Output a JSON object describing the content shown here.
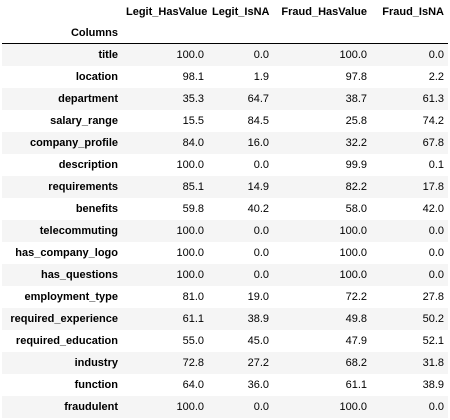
{
  "table": {
    "index_name": "Columns",
    "columns": [
      "Legit_HasValue",
      "Legit_IsNA",
      "Fraud_HasValue",
      "Fraud_IsNA"
    ],
    "rows": [
      {
        "index": "title",
        "values": [
          "100.0",
          "0.0",
          "100.0",
          "0.0"
        ]
      },
      {
        "index": "location",
        "values": [
          "98.1",
          "1.9",
          "97.8",
          "2.2"
        ]
      },
      {
        "index": "department",
        "values": [
          "35.3",
          "64.7",
          "38.7",
          "61.3"
        ]
      },
      {
        "index": "salary_range",
        "values": [
          "15.5",
          "84.5",
          "25.8",
          "74.2"
        ]
      },
      {
        "index": "company_profile",
        "values": [
          "84.0",
          "16.0",
          "32.2",
          "67.8"
        ]
      },
      {
        "index": "description",
        "values": [
          "100.0",
          "0.0",
          "99.9",
          "0.1"
        ]
      },
      {
        "index": "requirements",
        "values": [
          "85.1",
          "14.9",
          "82.2",
          "17.8"
        ]
      },
      {
        "index": "benefits",
        "values": [
          "59.8",
          "40.2",
          "58.0",
          "42.0"
        ]
      },
      {
        "index": "telecommuting",
        "values": [
          "100.0",
          "0.0",
          "100.0",
          "0.0"
        ]
      },
      {
        "index": "has_company_logo",
        "values": [
          "100.0",
          "0.0",
          "100.0",
          "0.0"
        ]
      },
      {
        "index": "has_questions",
        "values": [
          "100.0",
          "0.0",
          "100.0",
          "0.0"
        ]
      },
      {
        "index": "employment_type",
        "values": [
          "81.0",
          "19.0",
          "72.2",
          "27.8"
        ]
      },
      {
        "index": "required_experience",
        "values": [
          "61.1",
          "38.9",
          "49.8",
          "50.2"
        ]
      },
      {
        "index": "required_education",
        "values": [
          "55.0",
          "45.0",
          "47.9",
          "52.1"
        ]
      },
      {
        "index": "industry",
        "values": [
          "72.8",
          "27.2",
          "68.2",
          "31.8"
        ]
      },
      {
        "index": "function",
        "values": [
          "64.0",
          "36.0",
          "61.1",
          "38.9"
        ]
      },
      {
        "index": "fraudulent",
        "values": [
          "100.0",
          "0.0",
          "100.0",
          "0.0"
        ]
      }
    ]
  }
}
